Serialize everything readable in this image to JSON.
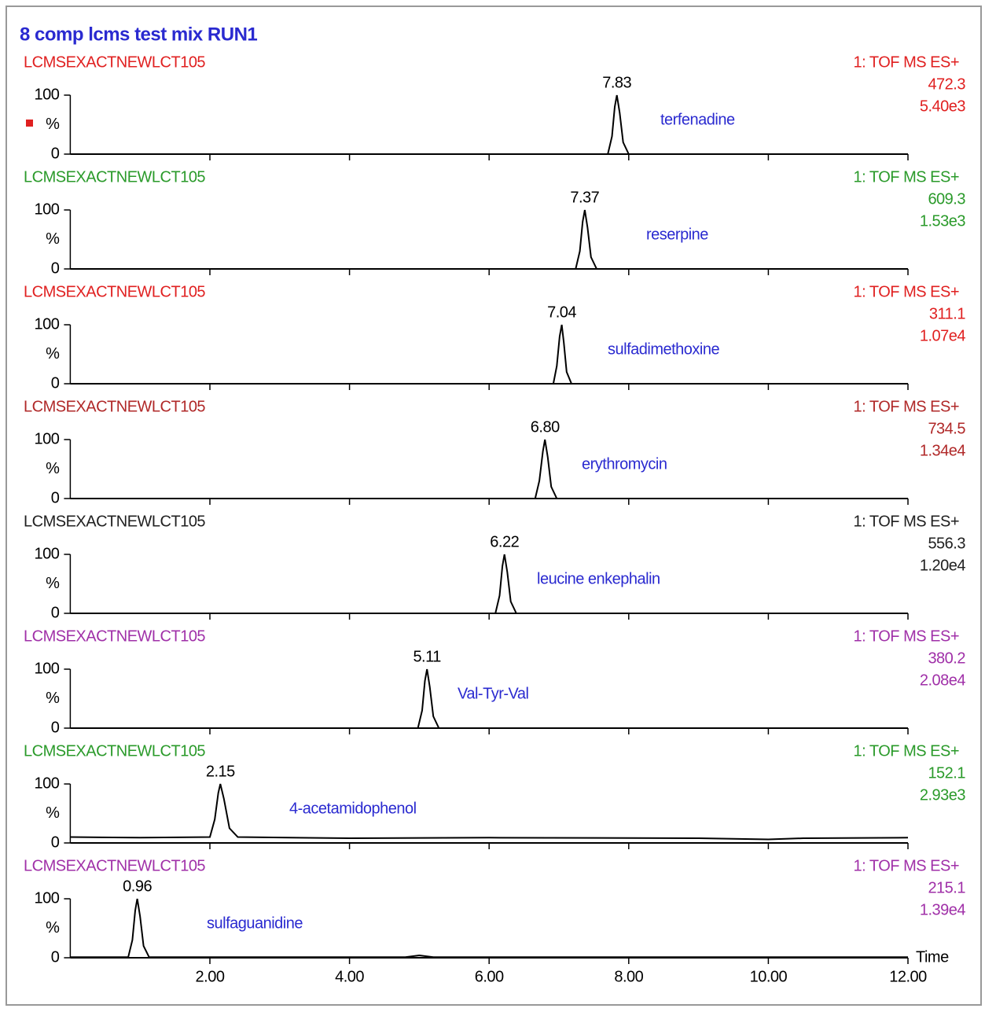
{
  "chart_data": {
    "type": "line",
    "title": "8 comp lcms test mix RUN1",
    "x_label": "Time",
    "xlim": [
      0,
      12
    ],
    "xticks": [
      {
        "value": 2,
        "label": "2.00"
      },
      {
        "value": 4,
        "label": "4.00"
      },
      {
        "value": 6,
        "label": "6.00"
      },
      {
        "value": 8,
        "label": "8.00"
      },
      {
        "value": 10,
        "label": "10.00"
      },
      {
        "value": 12,
        "label": "12.00"
      }
    ],
    "ylim": [
      0,
      100
    ],
    "yticks": [
      0,
      100
    ],
    "y_label": "%",
    "panels": [
      {
        "instrument": "LCMSEXACTNEWLCT105",
        "scan": "1: TOF MS ES+",
        "mass": 472.3,
        "intensity": "5.40e3",
        "compound": "terfenadine",
        "color": "#e02020",
        "peak_x": 7.83,
        "peak_label": "7.83",
        "x": [
          0,
          7.7,
          7.76,
          7.8,
          7.83,
          7.87,
          7.92,
          8.0,
          12
        ],
        "values": [
          0,
          0,
          30,
          80,
          100,
          70,
          20,
          0,
          0
        ]
      },
      {
        "instrument": "LCMSEXACTNEWLCT105",
        "scan": "1: TOF MS ES+",
        "mass": 609.3,
        "intensity": "1.53e3",
        "compound": "reserpine",
        "color": "#2a9a2a",
        "peak_x": 7.37,
        "peak_label": "7.37",
        "x": [
          0,
          7.24,
          7.3,
          7.34,
          7.37,
          7.41,
          7.46,
          7.54,
          12
        ],
        "values": [
          0,
          0,
          30,
          80,
          100,
          70,
          20,
          0,
          0
        ]
      },
      {
        "instrument": "LCMSEXACTNEWLCT105",
        "scan": "1: TOF MS ES+",
        "mass": 311.1,
        "intensity": "1.07e4",
        "compound": "sulfadimethoxine",
        "color": "#e02020",
        "peak_x": 7.04,
        "peak_label": "7.04",
        "x": [
          0,
          6.92,
          6.97,
          7.01,
          7.04,
          7.07,
          7.11,
          7.18,
          12
        ],
        "values": [
          0,
          0,
          30,
          80,
          100,
          70,
          20,
          0,
          0
        ]
      },
      {
        "instrument": "LCMSEXACTNEWLCT105",
        "scan": "1: TOF MS ES+",
        "mass": 734.5,
        "intensity": "1.34e4",
        "compound": "erythromycin",
        "color": "#b02828",
        "peak_x": 6.8,
        "peak_label": "6.80",
        "x": [
          0,
          6.66,
          6.72,
          6.77,
          6.8,
          6.84,
          6.89,
          6.97,
          12
        ],
        "values": [
          0,
          0,
          30,
          80,
          100,
          70,
          20,
          0,
          0
        ]
      },
      {
        "instrument": "LCMSEXACTNEWLCT105",
        "scan": "1: TOF MS ES+",
        "mass": 556.3,
        "intensity": "1.20e4",
        "compound": "leucine enkephalin",
        "color": "#202020",
        "peak_x": 6.22,
        "peak_label": "6.22",
        "x": [
          0,
          6.09,
          6.15,
          6.19,
          6.22,
          6.26,
          6.31,
          6.39,
          12
        ],
        "values": [
          0,
          0,
          30,
          80,
          100,
          70,
          20,
          0,
          0
        ]
      },
      {
        "instrument": "LCMSEXACTNEWLCT105",
        "scan": "1: TOF MS ES+",
        "mass": 380.2,
        "intensity": "2.08e4",
        "compound": "Val-Tyr-Val",
        "color": "#a030a8",
        "peak_x": 5.11,
        "peak_label": "5.11",
        "x": [
          0,
          4.98,
          5.04,
          5.08,
          5.11,
          5.15,
          5.2,
          5.28,
          12
        ],
        "values": [
          0,
          0,
          30,
          80,
          100,
          70,
          20,
          0,
          0
        ]
      },
      {
        "instrument": "LCMSEXACTNEWLCT105",
        "scan": "1: TOF MS ES+",
        "mass": 152.1,
        "intensity": "2.93e3",
        "compound": "4-acetamidophenol",
        "color": "#2a9a2a",
        "peak_x": 2.15,
        "peak_label": "2.15",
        "x": [
          0,
          1,
          2.0,
          2.07,
          2.12,
          2.15,
          2.2,
          2.28,
          2.4,
          4,
          6,
          9,
          10,
          10.5,
          12
        ],
        "values": [
          10,
          9,
          10,
          40,
          85,
          100,
          75,
          25,
          10,
          8,
          9,
          8,
          6,
          8,
          9
        ]
      },
      {
        "instrument": "LCMSEXACTNEWLCT105",
        "scan": "1: TOF MS ES+",
        "mass": 215.1,
        "intensity": "1.39e4",
        "compound": "sulfaguanidine",
        "color": "#a030a8",
        "peak_x": 0.96,
        "peak_label": "0.96",
        "x": [
          0,
          0.83,
          0.89,
          0.93,
          0.96,
          1.0,
          1.05,
          1.13,
          4.8,
          5.0,
          5.2,
          12
        ],
        "values": [
          1,
          1,
          30,
          80,
          100,
          70,
          20,
          1,
          1,
          4,
          1,
          1
        ]
      }
    ]
  }
}
